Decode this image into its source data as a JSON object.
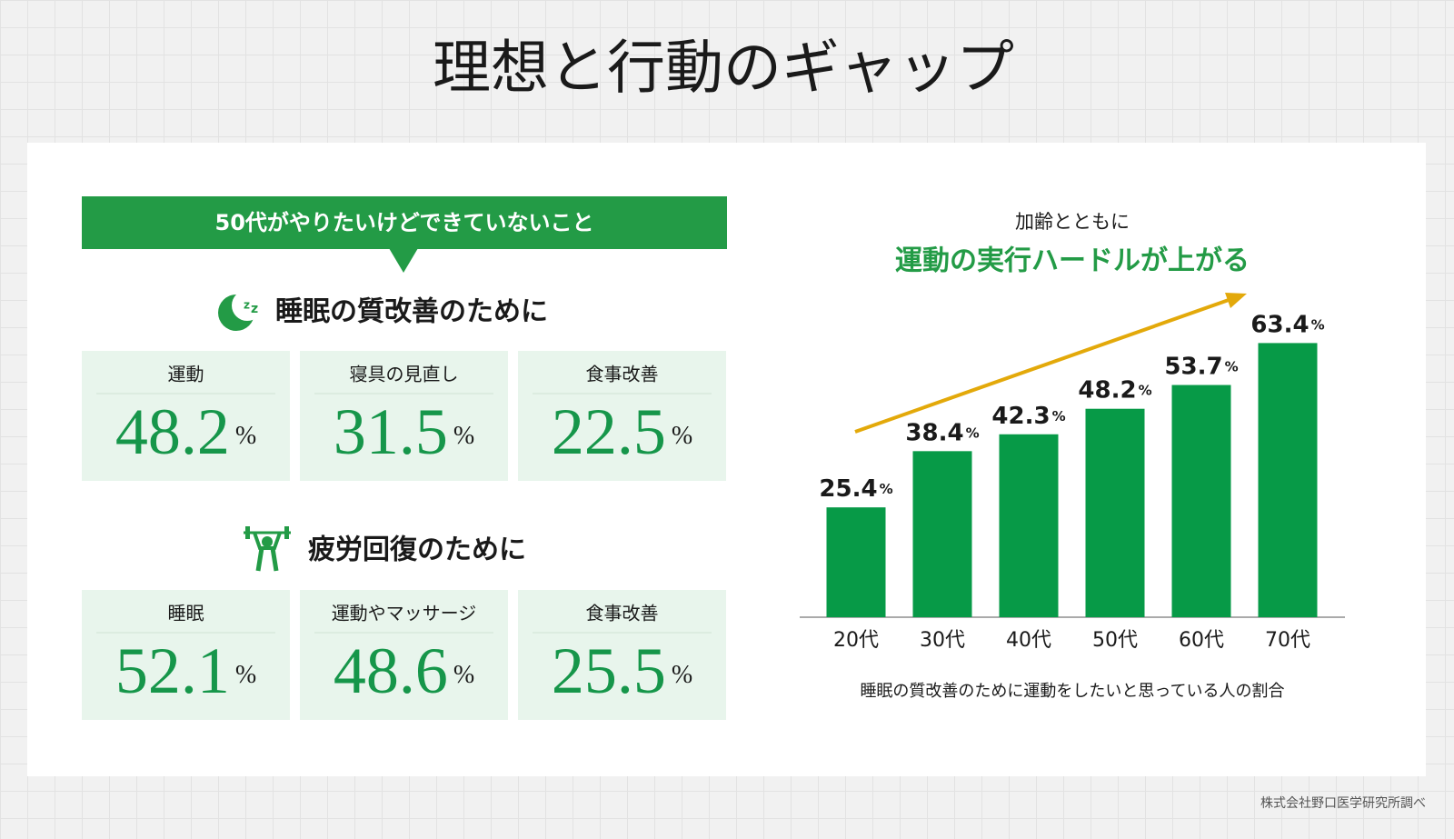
{
  "title": "理想と行動のギャップ",
  "unit": "%",
  "left_panel": {
    "banner": "50代がやりたいけどできていないこと",
    "sections": [
      {
        "heading": "睡眠の質改善のために",
        "items": [
          {
            "label": "運動",
            "value": 48.2
          },
          {
            "label": "寝具の見直し",
            "value": 31.5
          },
          {
            "label": "食事改善",
            "value": 22.5
          }
        ]
      },
      {
        "heading": "疲労回復のために",
        "items": [
          {
            "label": "睡眠",
            "value": 52.1
          },
          {
            "label": "運動やマッサージ",
            "value": 48.6
          },
          {
            "label": "食事改善",
            "value": 25.5
          }
        ]
      }
    ]
  },
  "chart_data": {
    "type": "bar",
    "subtitle": "加齢とともに",
    "title": "運動の実行ハードルが上がる",
    "categories": [
      "20代",
      "30代",
      "40代",
      "50代",
      "60代",
      "70代"
    ],
    "values": [
      25.4,
      38.4,
      42.3,
      48.2,
      53.7,
      63.4
    ],
    "unit": "%",
    "color": "#079a47",
    "ylim": [
      0,
      70
    ],
    "caption": "睡眠の質改善のために運動をしたいと思っている人の割合"
  },
  "source": "株式会社野口医学研究所調べ"
}
